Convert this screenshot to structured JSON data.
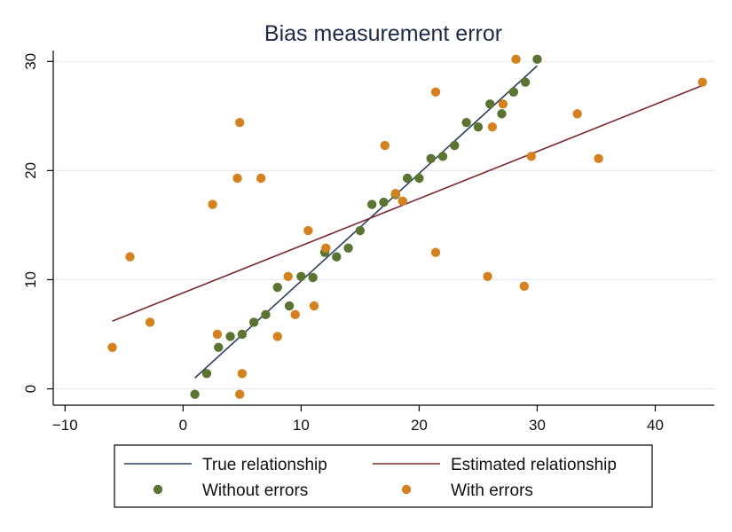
{
  "chart_data": {
    "type": "scatter",
    "title": "Bias measurement error",
    "xlabel": "",
    "ylabel": "",
    "xlim": [
      -11,
      45
    ],
    "ylim": [
      -1.5,
      31
    ],
    "x_ticks": [
      -10,
      0,
      10,
      20,
      30,
      40
    ],
    "x_tick_labels": [
      "−10",
      "0",
      "10",
      "20",
      "30",
      "40"
    ],
    "y_ticks": [
      0,
      10,
      20,
      30
    ],
    "y_tick_labels": [
      "0",
      "10",
      "20",
      "30"
    ],
    "grid": true,
    "legend_position": "bottom",
    "series": [
      {
        "name": "True relationship",
        "kind": "line",
        "color": "#2b3f5e",
        "points": [
          [
            1,
            1.0
          ],
          [
            30,
            29.6
          ]
        ]
      },
      {
        "name": "Estimated relationship",
        "kind": "line",
        "color": "#7a2b2e",
        "points": [
          [
            -6,
            6.2
          ],
          [
            44,
            27.8
          ]
        ]
      },
      {
        "name": "Without errors",
        "kind": "scatter",
        "color": "#5a7431",
        "points": [
          [
            1,
            -0.5
          ],
          [
            2,
            1.4
          ],
          [
            3,
            3.8
          ],
          [
            4,
            4.8
          ],
          [
            5,
            5.0
          ],
          [
            6,
            6.1
          ],
          [
            7,
            6.8
          ],
          [
            8,
            9.3
          ],
          [
            9,
            7.6
          ],
          [
            10,
            10.3
          ],
          [
            11,
            10.2
          ],
          [
            12,
            12.5
          ],
          [
            13,
            12.1
          ],
          [
            14,
            12.9
          ],
          [
            15,
            14.5
          ],
          [
            16,
            16.9
          ],
          [
            17,
            17.1
          ],
          [
            18,
            17.8
          ],
          [
            19,
            19.3
          ],
          [
            20,
            19.3
          ],
          [
            21,
            21.1
          ],
          [
            22,
            21.3
          ],
          [
            23,
            22.3
          ],
          [
            24,
            24.4
          ],
          [
            25,
            24.0
          ],
          [
            26,
            26.1
          ],
          [
            27,
            25.2
          ],
          [
            28,
            27.2
          ],
          [
            29,
            28.1
          ],
          [
            30,
            30.2
          ]
        ]
      },
      {
        "name": "With errors",
        "kind": "scatter",
        "color": "#d4811f",
        "points": [
          [
            -6.0,
            3.8
          ],
          [
            -4.5,
            12.1
          ],
          [
            -2.8,
            6.1
          ],
          [
            2.5,
            16.9
          ],
          [
            2.9,
            5.0
          ],
          [
            4.6,
            19.3
          ],
          [
            4.8,
            24.4
          ],
          [
            4.8,
            -0.5
          ],
          [
            5.0,
            1.4
          ],
          [
            6.6,
            19.3
          ],
          [
            8.0,
            4.8
          ],
          [
            8.9,
            10.3
          ],
          [
            9.5,
            6.8
          ],
          [
            10.6,
            14.5
          ],
          [
            11.1,
            7.6
          ],
          [
            12.1,
            12.9
          ],
          [
            17.1,
            22.3
          ],
          [
            18.0,
            17.9
          ],
          [
            18.6,
            17.2
          ],
          [
            21.4,
            27.2
          ],
          [
            21.4,
            12.5
          ],
          [
            25.8,
            10.3
          ],
          [
            26.2,
            24.0
          ],
          [
            27.1,
            26.1
          ],
          [
            28.2,
            30.2
          ],
          [
            28.9,
            9.4
          ],
          [
            29.5,
            21.3
          ],
          [
            33.4,
            25.2
          ],
          [
            35.2,
            21.1
          ],
          [
            44.0,
            28.1
          ]
        ]
      }
    ]
  },
  "legend": {
    "items": [
      {
        "label": "True relationship",
        "symbol": "line",
        "color": "#2b3f5e"
      },
      {
        "label": "Estimated relationship",
        "symbol": "line",
        "color": "#7a2b2e"
      },
      {
        "label": "Without errors",
        "symbol": "dot",
        "color": "#5a7431"
      },
      {
        "label": "With errors",
        "symbol": "dot",
        "color": "#d4811f"
      }
    ]
  }
}
